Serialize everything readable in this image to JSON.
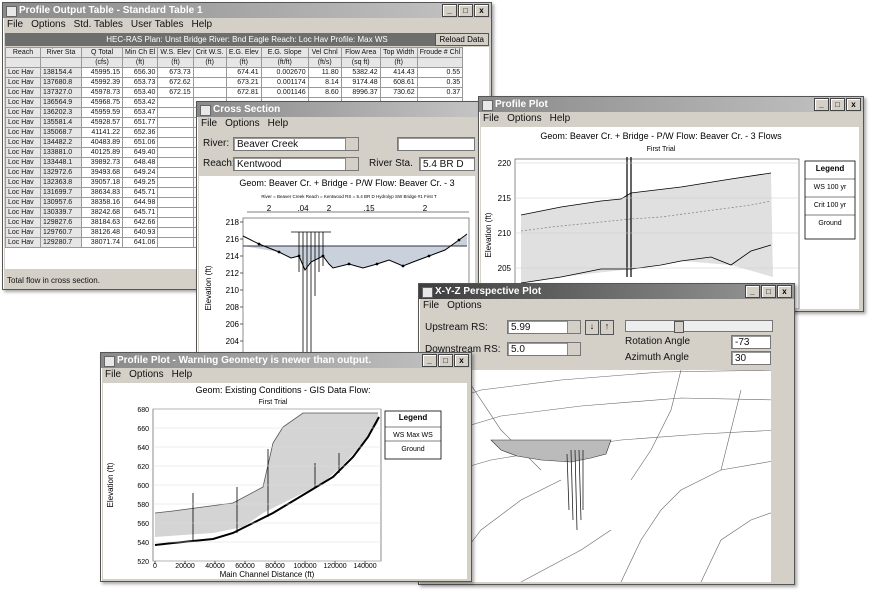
{
  "output_table": {
    "title": "Profile Output Table - Standard Table 1",
    "menu": [
      "File",
      "Options",
      "Std. Tables",
      "User Tables",
      "Help"
    ],
    "plan_bar": "HEC-RAS  Plan: Unst Bridge   River: Bnd Eagle   Reach: Loc Hav   Profile: Max WS",
    "reload": "Reload Data",
    "headers": [
      "Reach",
      "River Sta",
      "Q Total",
      "Min Ch El",
      "W.S. Elev",
      "Crit W.S.",
      "E.G. Elev",
      "E.G. Slope",
      "Vel Chnl",
      "Flow Area",
      "Top Width",
      "Froude # Chl"
    ],
    "units": [
      "",
      "",
      "(cfs)",
      "(ft)",
      "(ft)",
      "(ft)",
      "(ft)",
      "(ft/ft)",
      "(ft/s)",
      "(sq ft)",
      "(ft)",
      ""
    ],
    "rows": [
      [
        "Loc Hav",
        "138154.4",
        "45995.15",
        "656.30",
        "673.73",
        "",
        "674.41",
        "0.002670",
        "11.80",
        "5382.42",
        "414.43",
        "0.55"
      ],
      [
        "Loc Hav",
        "137680.8",
        "45992.39",
        "653.73",
        "672.62",
        "",
        "673.21",
        "0.001174",
        "8.14",
        "9174.48",
        "608.61",
        "0.35"
      ],
      [
        "Loc Hav",
        "137327.0",
        "45978.73",
        "653.40",
        "672.15",
        "",
        "672.81",
        "0.001146",
        "8.60",
        "8996.37",
        "730.62",
        "0.37"
      ],
      [
        "Loc Hav",
        "136564.9",
        "45968.75",
        "653.42"
      ],
      [
        "Loc Hav",
        "136202.3",
        "45959.59",
        "653.47"
      ],
      [
        "Loc Hav",
        "135581.4",
        "45928.57",
        "651.77"
      ],
      [
        "Loc Hav",
        "135068.7",
        "41141.22",
        "652.36"
      ],
      [
        "Loc Hav",
        "134482.2",
        "40483.89",
        "651.06"
      ],
      [
        "Loc Hav",
        "133881.0",
        "40125.89",
        "649.40"
      ],
      [
        "Loc Hav",
        "133448.1",
        "39892.73",
        "648.48"
      ],
      [
        "Loc Hav",
        "132972.6",
        "39493.68",
        "649.24"
      ],
      [
        "Loc Hav",
        "132363.8",
        "39057.18",
        "649.25"
      ],
      [
        "Loc Hav",
        "131699.7",
        "38634.83",
        "645.71"
      ],
      [
        "Loc Hav",
        "130957.6",
        "38358.16",
        "644.98"
      ],
      [
        "Loc Hav",
        "130339.7",
        "38242.68",
        "645.71"
      ],
      [
        "Loc Hav",
        "129827.6",
        "38184.63",
        "642.66"
      ],
      [
        "Loc Hav",
        "129760.7",
        "38126.48",
        "640.93"
      ],
      [
        "Loc Hav",
        "129280.7",
        "38071.74",
        "641.06"
      ]
    ],
    "status": "Total flow in cross section."
  },
  "cross_section": {
    "title": "Cross Section",
    "menu": [
      "File",
      "Options",
      "Help"
    ],
    "river_label": "River:",
    "river": "Beaver Creek",
    "reach_label": "Reach:",
    "reach": "Kentwood",
    "station_label": "River Sta.",
    "station": "5.4  BR D",
    "plot_title": "Geom: Beaver Cr. + Bridge - P/W   Flow: Beaver Cr. - 3",
    "plot_subtitle": "River = Beaver Creek   Reach = Kentwood   RS = 5.4   BR D   Hydrolyp SW Bridge #1   First T",
    "n_values": [
      "2",
      ".04",
      "2",
      ".15",
      "2"
    ],
    "y_label": "Elevation (ft)",
    "yticks": [
      218,
      216,
      214,
      212,
      210,
      208,
      206,
      204
    ]
  },
  "profile_plot": {
    "title": "Profile Plot",
    "menu": [
      "File",
      "Options",
      "Help"
    ],
    "plot_title": "Geom: Beaver Cr. + Bridge - P/W   Flow: Beaver Cr. - 3 Flows",
    "plot_subtitle": "First Trial",
    "y_label": "Elevation (ft)",
    "yticks": [
      220,
      215,
      210,
      205
    ],
    "legend": {
      "title": "Legend",
      "items": [
        "WS  100 yr",
        "Crit  100 yr",
        "Ground"
      ]
    }
  },
  "xyz_plot": {
    "title": "X-Y-Z Perspective Plot",
    "menu": [
      "File",
      "Options"
    ],
    "upstream_label": "Upstream RS:",
    "upstream": "5.99",
    "downstream_label": "Downstream RS:",
    "downstream": "5.0",
    "rotation_label": "Rotation Angle",
    "rotation": "-73",
    "azimuth_label": "Azimuth Angle",
    "azimuth": "30"
  },
  "warning_plot": {
    "title": "Profile Plot - Warning Geometry is newer than output.",
    "menu": [
      "File",
      "Options",
      "Help"
    ],
    "plot_title": "Geom: Existing Conditions - GIS Data    Flow:",
    "plot_subtitle": "First Trial",
    "y_label": "Elevation (ft)",
    "yticks": [
      680,
      660,
      640,
      620,
      600,
      580,
      560,
      540,
      520
    ],
    "x_label": "Main Channel Distance (ft)",
    "xticks": [
      0,
      20000,
      40000,
      60000,
      80000,
      100000,
      120000,
      140000
    ],
    "legend": {
      "title": "Legend",
      "items": [
        "WS  Max WS",
        "Ground"
      ]
    }
  }
}
